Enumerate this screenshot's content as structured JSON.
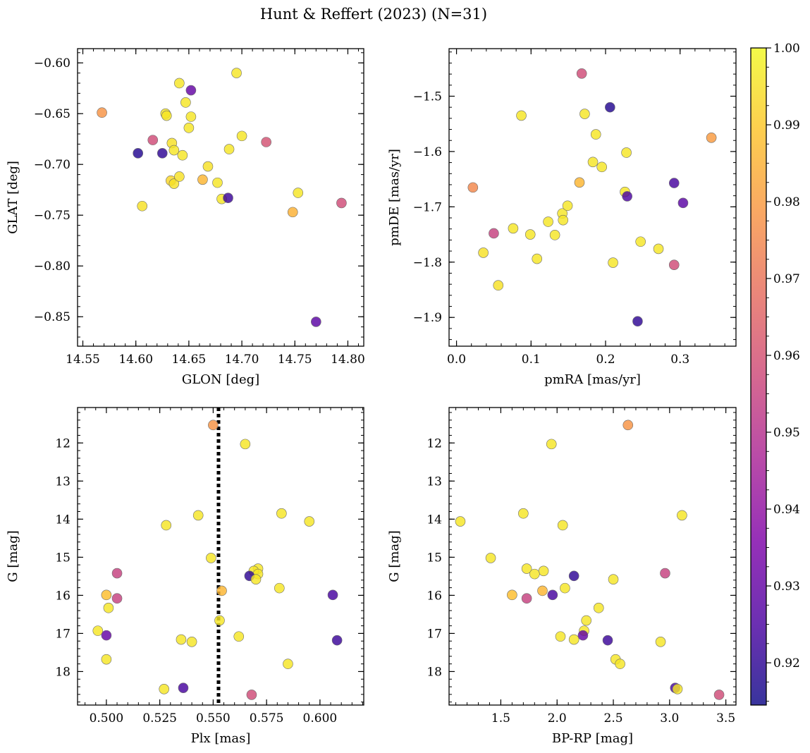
{
  "figure": {
    "title": "Hunt & Reffert (2023) (N=31)"
  },
  "colorbar": {
    "colormap": "plasma",
    "vmin": 0.9145,
    "vmax": 1.0,
    "ticks": [
      0.92,
      0.93,
      0.94,
      0.95,
      0.96,
      0.97,
      0.98,
      0.99,
      1.0
    ],
    "tick_labels": [
      "0.92",
      "0.93",
      "0.94",
      "0.95",
      "0.96",
      "0.97",
      "0.98",
      "0.99",
      "1.00"
    ]
  },
  "chart_data": [
    {
      "type": "scatter",
      "id": "glon-glat",
      "xlabel": "GLON [deg]",
      "ylabel": "GLAT [deg]",
      "xlim": [
        14.545,
        14.815
      ],
      "ylim": [
        -0.879,
        -0.586
      ],
      "y_inverted": false,
      "xticks": [
        14.55,
        14.6,
        14.65,
        14.7,
        14.75,
        14.8
      ],
      "xtick_labels": [
        "14.55",
        "14.60",
        "14.65",
        "14.70",
        "14.75",
        "14.80"
      ],
      "yticks": [
        -0.6,
        -0.65,
        -0.7,
        -0.75,
        -0.8,
        -0.85
      ],
      "ytick_labels": [
        "−0.60",
        "−0.65",
        "−0.70",
        "−0.75",
        "−0.80",
        "−0.85"
      ],
      "points": [
        {
          "x": 14.568,
          "y": -0.649,
          "c": 0.978
        },
        {
          "x": 14.602,
          "y": -0.689,
          "c": 0.918
        },
        {
          "x": 14.606,
          "y": -0.741,
          "c": 0.995
        },
        {
          "x": 14.616,
          "y": -0.676,
          "c": 0.958
        },
        {
          "x": 14.625,
          "y": -0.689,
          "c": 0.92
        },
        {
          "x": 14.628,
          "y": -0.65,
          "c": 0.996
        },
        {
          "x": 14.629,
          "y": -0.652,
          "c": 0.996
        },
        {
          "x": 14.633,
          "y": -0.716,
          "c": 0.993
        },
        {
          "x": 14.634,
          "y": -0.679,
          "c": 0.995
        },
        {
          "x": 14.636,
          "y": -0.686,
          "c": 0.996
        },
        {
          "x": 14.636,
          "y": -0.719,
          "c": 0.995
        },
        {
          "x": 14.641,
          "y": -0.62,
          "c": 0.996
        },
        {
          "x": 14.641,
          "y": -0.712,
          "c": 0.995
        },
        {
          "x": 14.644,
          "y": -0.691,
          "c": 0.996
        },
        {
          "x": 14.647,
          "y": -0.639,
          "c": 0.996
        },
        {
          "x": 14.65,
          "y": -0.664,
          "c": 0.996
        },
        {
          "x": 14.652,
          "y": -0.627,
          "c": 0.93
        },
        {
          "x": 14.652,
          "y": -0.653,
          "c": 0.996
        },
        {
          "x": 14.663,
          "y": -0.715,
          "c": 0.986
        },
        {
          "x": 14.668,
          "y": -0.702,
          "c": 0.995
        },
        {
          "x": 14.677,
          "y": -0.718,
          "c": 0.996
        },
        {
          "x": 14.681,
          "y": -0.734,
          "c": 0.996
        },
        {
          "x": 14.687,
          "y": -0.733,
          "c": 0.922
        },
        {
          "x": 14.688,
          "y": -0.685,
          "c": 0.996
        },
        {
          "x": 14.695,
          "y": -0.61,
          "c": 0.996
        },
        {
          "x": 14.7,
          "y": -0.672,
          "c": 0.996
        },
        {
          "x": 14.723,
          "y": -0.678,
          "c": 0.96
        },
        {
          "x": 14.748,
          "y": -0.747,
          "c": 0.985
        },
        {
          "x": 14.753,
          "y": -0.728,
          "c": 0.996
        },
        {
          "x": 14.77,
          "y": -0.855,
          "c": 0.928
        },
        {
          "x": 14.794,
          "y": -0.738,
          "c": 0.958
        }
      ]
    },
    {
      "type": "scatter",
      "id": "pmra-pmde",
      "xlabel": "pmRA [mas/yr]",
      "ylabel": "pmDE [mas/yr]",
      "xlim": [
        -0.01,
        0.375
      ],
      "ylim": [
        -1.952,
        -1.414
      ],
      "y_inverted": false,
      "xticks": [
        0.0,
        0.1,
        0.2,
        0.3
      ],
      "xtick_labels": [
        "0.0",
        "0.1",
        "0.2",
        "0.3"
      ],
      "yticks": [
        -1.5,
        -1.6,
        -1.7,
        -1.8,
        -1.9
      ],
      "ytick_labels": [
        "−1.5",
        "−1.6",
        "−1.7",
        "−1.8",
        "−1.9"
      ],
      "points": [
        {
          "x": 0.022,
          "y": -1.665,
          "c": 0.975
        },
        {
          "x": 0.036,
          "y": -1.783,
          "c": 0.995
        },
        {
          "x": 0.05,
          "y": -1.748,
          "c": 0.955
        },
        {
          "x": 0.056,
          "y": -1.842,
          "c": 0.995
        },
        {
          "x": 0.076,
          "y": -1.739,
          "c": 0.996
        },
        {
          "x": 0.087,
          "y": -1.535,
          "c": 0.996
        },
        {
          "x": 0.099,
          "y": -1.75,
          "c": 0.996
        },
        {
          "x": 0.108,
          "y": -1.794,
          "c": 0.996
        },
        {
          "x": 0.123,
          "y": -1.727,
          "c": 0.996
        },
        {
          "x": 0.132,
          "y": -1.751,
          "c": 0.996
        },
        {
          "x": 0.142,
          "y": -1.712,
          "c": 0.996
        },
        {
          "x": 0.143,
          "y": -1.724,
          "c": 0.996
        },
        {
          "x": 0.149,
          "y": -1.698,
          "c": 0.996
        },
        {
          "x": 0.165,
          "y": -1.656,
          "c": 0.986
        },
        {
          "x": 0.168,
          "y": -1.459,
          "c": 0.958
        },
        {
          "x": 0.172,
          "y": -1.532,
          "c": 0.996
        },
        {
          "x": 0.183,
          "y": -1.619,
          "c": 0.996
        },
        {
          "x": 0.187,
          "y": -1.569,
          "c": 0.996
        },
        {
          "x": 0.195,
          "y": -1.628,
          "c": 0.996
        },
        {
          "x": 0.206,
          "y": -1.52,
          "c": 0.918
        },
        {
          "x": 0.21,
          "y": -1.801,
          "c": 0.996
        },
        {
          "x": 0.226,
          "y": -1.673,
          "c": 0.996
        },
        {
          "x": 0.228,
          "y": -1.602,
          "c": 0.996
        },
        {
          "x": 0.229,
          "y": -1.681,
          "c": 0.925
        },
        {
          "x": 0.243,
          "y": -1.907,
          "c": 0.92
        },
        {
          "x": 0.247,
          "y": -1.763,
          "c": 0.996
        },
        {
          "x": 0.271,
          "y": -1.776,
          "c": 0.996
        },
        {
          "x": 0.292,
          "y": -1.805,
          "c": 0.958
        },
        {
          "x": 0.292,
          "y": -1.657,
          "c": 0.924
        },
        {
          "x": 0.304,
          "y": -1.693,
          "c": 0.928
        },
        {
          "x": 0.342,
          "y": -1.575,
          "c": 0.98
        }
      ]
    },
    {
      "type": "scatter",
      "id": "plx-g",
      "xlabel": "Plx [mas]",
      "ylabel": "G [mag]",
      "xlim": [
        0.4865,
        0.6205
      ],
      "ylim": [
        18.88,
        11.07
      ],
      "y_inverted": true,
      "xticks": [
        0.5,
        0.525,
        0.55,
        0.575,
        0.6
      ],
      "xtick_labels": [
        "0.500",
        "0.525",
        "0.550",
        "0.575",
        "0.600"
      ],
      "yticks": [
        12,
        13,
        14,
        15,
        16,
        17,
        18
      ],
      "ytick_labels": [
        "12",
        "13",
        "14",
        "15",
        "16",
        "17",
        "18"
      ],
      "vline": {
        "x": 0.5525,
        "style": "dotted",
        "color": "#000000"
      },
      "points": [
        {
          "x": 0.55,
          "y": 11.53,
          "c": 0.978
        },
        {
          "x": 0.565,
          "y": 12.03,
          "c": 0.996
        },
        {
          "x": 0.582,
          "y": 13.85,
          "c": 0.996
        },
        {
          "x": 0.543,
          "y": 13.9,
          "c": 0.996
        },
        {
          "x": 0.595,
          "y": 14.06,
          "c": 0.996
        },
        {
          "x": 0.528,
          "y": 14.16,
          "c": 0.996
        },
        {
          "x": 0.549,
          "y": 15.02,
          "c": 0.996
        },
        {
          "x": 0.571,
          "y": 15.3,
          "c": 0.996
        },
        {
          "x": 0.569,
          "y": 15.36,
          "c": 0.996
        },
        {
          "x": 0.505,
          "y": 15.42,
          "c": 0.955
        },
        {
          "x": 0.571,
          "y": 15.44,
          "c": 0.996
        },
        {
          "x": 0.567,
          "y": 15.49,
          "c": 0.92
        },
        {
          "x": 0.57,
          "y": 15.58,
          "c": 0.996
        },
        {
          "x": 0.581,
          "y": 15.81,
          "c": 0.996
        },
        {
          "x": 0.554,
          "y": 15.88,
          "c": 0.986
        },
        {
          "x": 0.606,
          "y": 15.99,
          "c": 0.924
        },
        {
          "x": 0.5,
          "y": 15.99,
          "c": 0.988
        },
        {
          "x": 0.505,
          "y": 16.08,
          "c": 0.955
        },
        {
          "x": 0.501,
          "y": 16.33,
          "c": 0.996
        },
        {
          "x": 0.553,
          "y": 16.66,
          "c": 0.996
        },
        {
          "x": 0.496,
          "y": 16.93,
          "c": 0.996
        },
        {
          "x": 0.5,
          "y": 17.05,
          "c": 0.93
        },
        {
          "x": 0.562,
          "y": 17.08,
          "c": 0.996
        },
        {
          "x": 0.535,
          "y": 17.16,
          "c": 0.996
        },
        {
          "x": 0.608,
          "y": 17.18,
          "c": 0.922
        },
        {
          "x": 0.54,
          "y": 17.22,
          "c": 0.996
        },
        {
          "x": 0.5,
          "y": 17.68,
          "c": 0.996
        },
        {
          "x": 0.585,
          "y": 17.8,
          "c": 0.996
        },
        {
          "x": 0.536,
          "y": 18.43,
          "c": 0.924
        },
        {
          "x": 0.527,
          "y": 18.46,
          "c": 0.996
        },
        {
          "x": 0.568,
          "y": 18.61,
          "c": 0.958
        }
      ]
    },
    {
      "type": "scatter",
      "id": "bprp-g",
      "xlabel": "BP-RP [mag]",
      "ylabel": "G [mag]",
      "xlim": [
        1.04,
        3.59
      ],
      "ylim": [
        18.88,
        11.07
      ],
      "y_inverted": true,
      "xticks": [
        1.5,
        2.0,
        2.5,
        3.0,
        3.5
      ],
      "xtick_labels": [
        "1.5",
        "2.0",
        "2.5",
        "3.0",
        "3.5"
      ],
      "yticks": [
        12,
        13,
        14,
        15,
        16,
        17,
        18
      ],
      "ytick_labels": [
        "12",
        "13",
        "14",
        "15",
        "16",
        "17",
        "18"
      ],
      "points": [
        {
          "x": 2.63,
          "y": 11.53,
          "c": 0.978
        },
        {
          "x": 1.95,
          "y": 12.03,
          "c": 0.996
        },
        {
          "x": 1.7,
          "y": 13.85,
          "c": 0.996
        },
        {
          "x": 3.11,
          "y": 13.9,
          "c": 0.996
        },
        {
          "x": 1.14,
          "y": 14.06,
          "c": 0.996
        },
        {
          "x": 2.05,
          "y": 14.16,
          "c": 0.996
        },
        {
          "x": 1.41,
          "y": 15.02,
          "c": 0.996
        },
        {
          "x": 1.73,
          "y": 15.3,
          "c": 0.996
        },
        {
          "x": 1.88,
          "y": 15.36,
          "c": 0.996
        },
        {
          "x": 2.96,
          "y": 15.42,
          "c": 0.955
        },
        {
          "x": 1.8,
          "y": 15.44,
          "c": 0.996
        },
        {
          "x": 2.15,
          "y": 15.49,
          "c": 0.92
        },
        {
          "x": 2.5,
          "y": 15.58,
          "c": 0.996
        },
        {
          "x": 2.07,
          "y": 15.81,
          "c": 0.996
        },
        {
          "x": 1.87,
          "y": 15.88,
          "c": 0.986
        },
        {
          "x": 1.96,
          "y": 15.99,
          "c": 0.924
        },
        {
          "x": 1.6,
          "y": 15.99,
          "c": 0.988
        },
        {
          "x": 1.73,
          "y": 16.08,
          "c": 0.955
        },
        {
          "x": 2.37,
          "y": 16.33,
          "c": 0.996
        },
        {
          "x": 2.26,
          "y": 16.66,
          "c": 0.996
        },
        {
          "x": 2.24,
          "y": 16.93,
          "c": 0.996
        },
        {
          "x": 2.23,
          "y": 17.05,
          "c": 0.93
        },
        {
          "x": 2.03,
          "y": 17.08,
          "c": 0.996
        },
        {
          "x": 2.15,
          "y": 17.16,
          "c": 0.996
        },
        {
          "x": 2.45,
          "y": 17.18,
          "c": 0.922
        },
        {
          "x": 2.92,
          "y": 17.22,
          "c": 0.996
        },
        {
          "x": 2.52,
          "y": 17.68,
          "c": 0.996
        },
        {
          "x": 2.56,
          "y": 17.8,
          "c": 0.996
        },
        {
          "x": 3.05,
          "y": 18.43,
          "c": 0.924
        },
        {
          "x": 3.07,
          "y": 18.46,
          "c": 0.996
        },
        {
          "x": 3.44,
          "y": 18.61,
          "c": 0.958
        }
      ]
    }
  ]
}
